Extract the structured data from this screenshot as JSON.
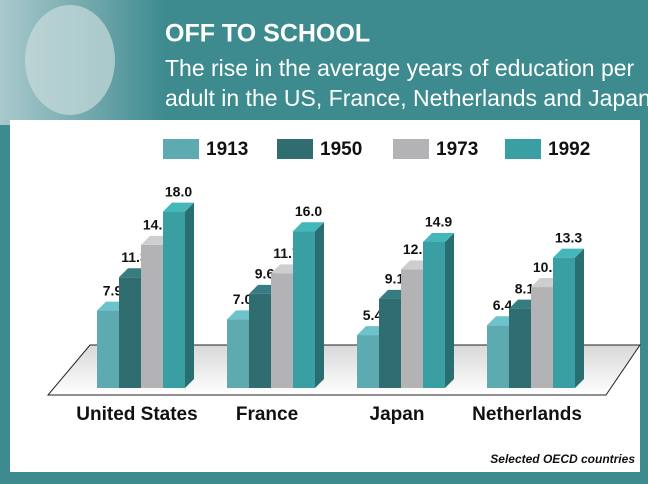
{
  "chart_data": {
    "type": "bar3d",
    "title": "OFF TO SCHOOL",
    "subtitle": [
      "The rise in the average years of education per",
      "adult in the US, France, Netherlands and Japan"
    ],
    "note": "Selected OECD countries",
    "categories": [
      "United States",
      "France",
      "Japan",
      "Netherlands"
    ],
    "series": [
      {
        "name": "1913",
        "color": "#5eaab1",
        "values": [
          7.9,
          7.0,
          5.4,
          6.4
        ],
        "value_labels": [
          "7.9",
          "7.0",
          "5.4",
          "6.4"
        ]
      },
      {
        "name": "1950",
        "color": "#2f6d70",
        "values": [
          11.3,
          9.6,
          9.1,
          8.1
        ],
        "value_labels": [
          "11.3",
          "9.6",
          "9.1",
          "8.1"
        ]
      },
      {
        "name": "1973",
        "color": "#b3b3b5",
        "values": [
          14.6,
          11.7,
          12.1,
          10.3
        ],
        "value_labels": [
          "14.6",
          "11.7",
          "12.1",
          "10.3"
        ]
      },
      {
        "name": "1992",
        "color": "#3a9fa2",
        "values": [
          18.0,
          16.0,
          14.9,
          13.3
        ],
        "value_labels": [
          "18.0",
          "16.0",
          "14.9",
          "13.3"
        ]
      }
    ]
  }
}
